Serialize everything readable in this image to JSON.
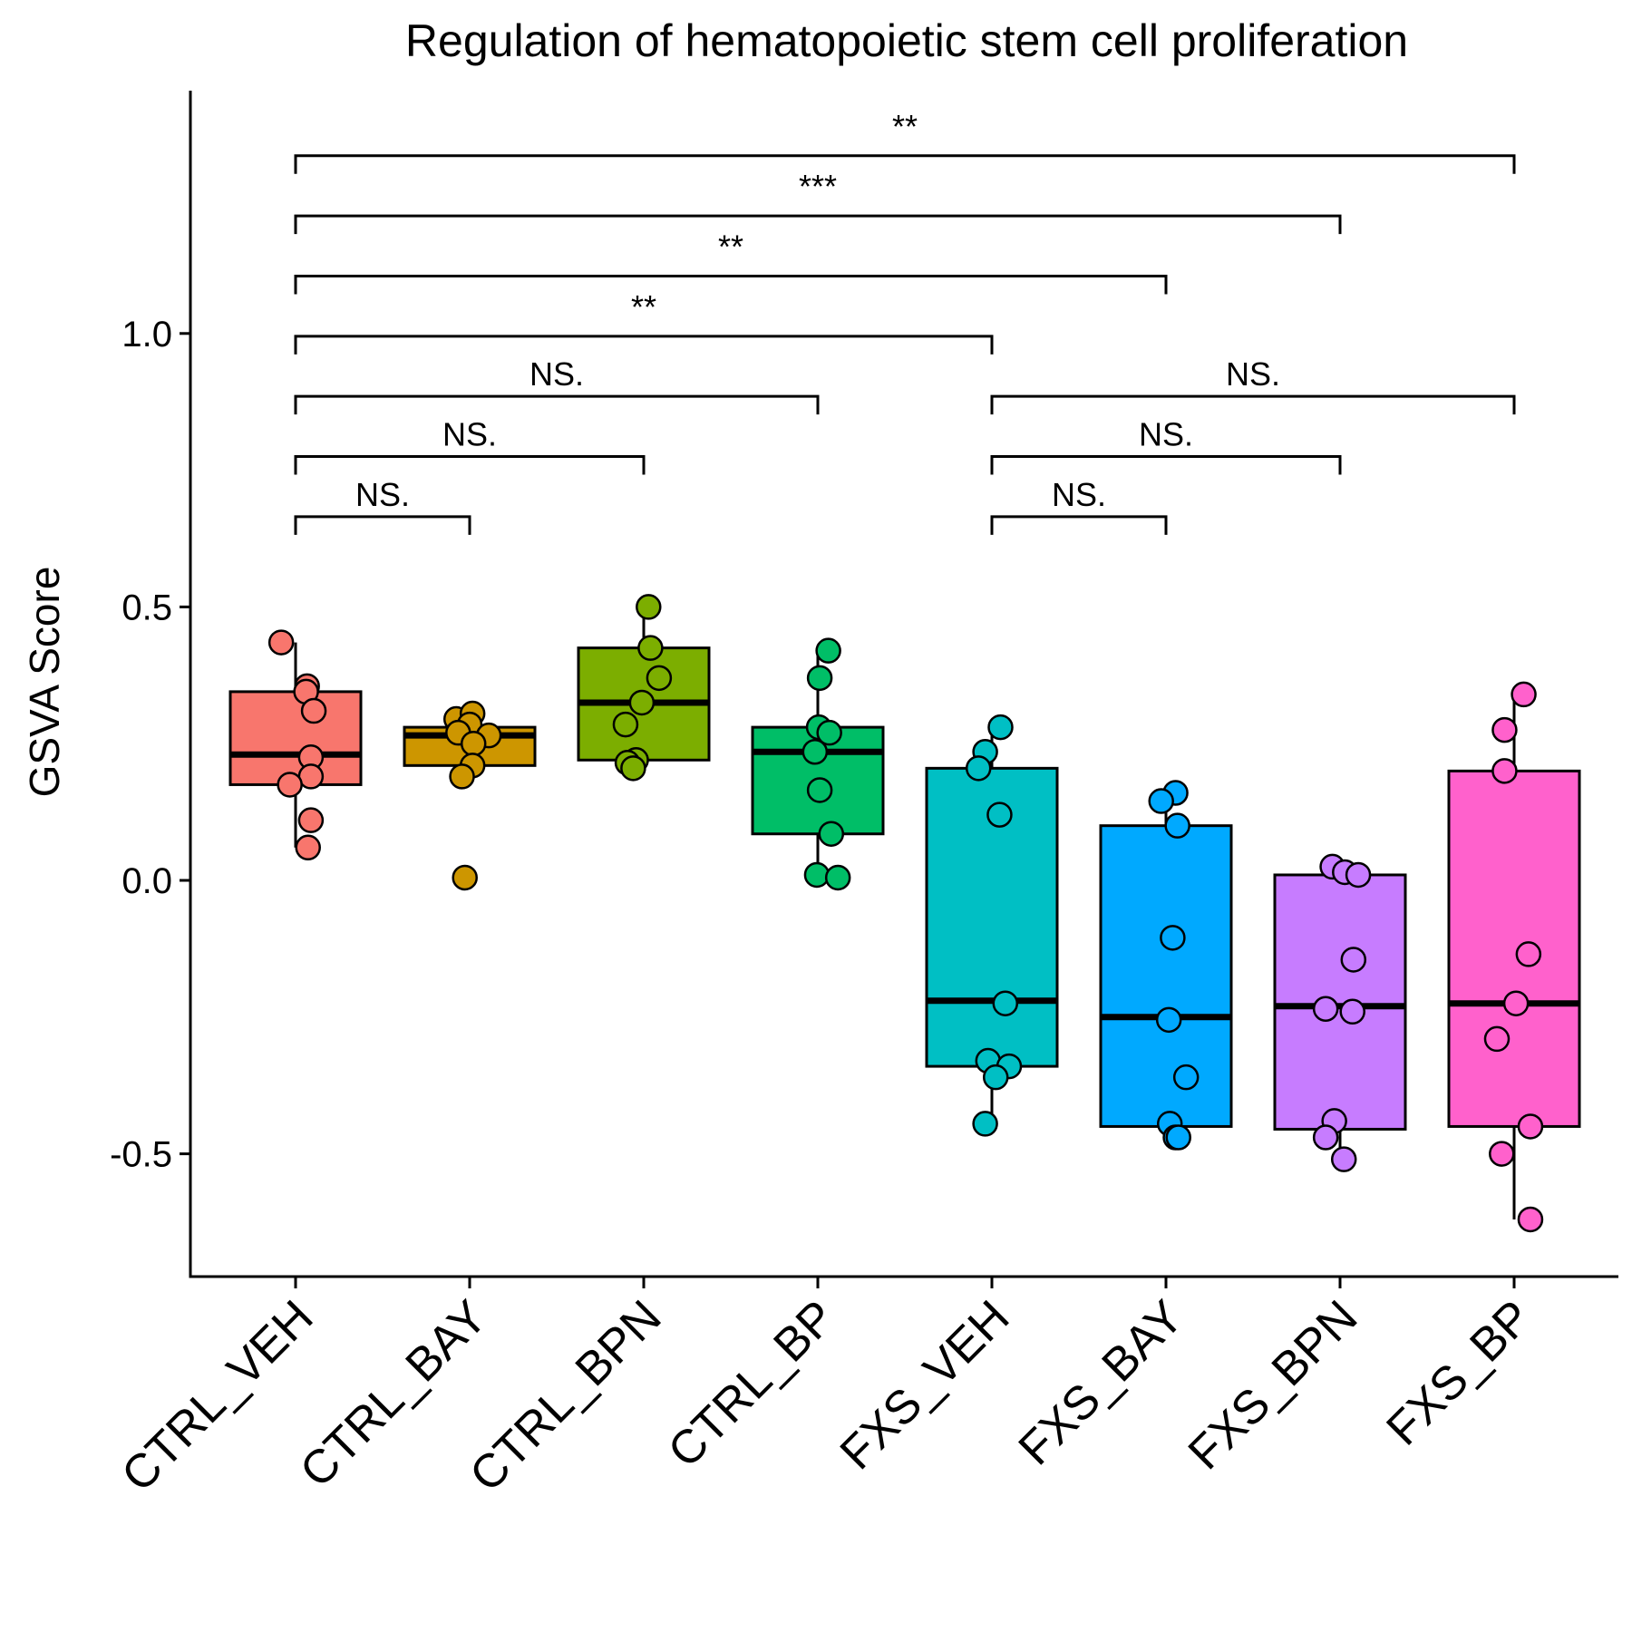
{
  "chart_data": {
    "type": "box",
    "title": "Regulation of hematopoietic stem cell proliferation",
    "xlabel": "",
    "ylabel": "GSVA Score",
    "ylim": [
      -0.72,
      1.46
    ],
    "yticks": [
      {
        "value": -0.5,
        "label": "-0.5"
      },
      {
        "value": 0.0,
        "label": "0.0"
      },
      {
        "value": 0.5,
        "label": "0.5"
      },
      {
        "value": 1.0,
        "label": "1.0"
      }
    ],
    "grid": false,
    "legend": "none",
    "categories": [
      "CTRL_VEH",
      "CTRL_BAY",
      "CTRL_BPN",
      "CTRL_BP",
      "FXS_VEH",
      "FXS_BAY",
      "FXS_BPN",
      "FXS_BP"
    ],
    "colors": [
      "#F8766D",
      "#CD9600",
      "#7CAE00",
      "#00BE67",
      "#00BFC4",
      "#00A9FF",
      "#C77CFF",
      "#FF61CC"
    ],
    "boxes": [
      {
        "q1": 0.175,
        "median": 0.23,
        "q3": 0.345,
        "whisker_low": 0.06,
        "whisker_high": 0.435
      },
      {
        "q1": 0.21,
        "median": 0.265,
        "q3": 0.28,
        "whisker_low": 0.21,
        "whisker_high": 0.31
      },
      {
        "q1": 0.22,
        "median": 0.325,
        "q3": 0.425,
        "whisker_low": 0.21,
        "whisker_high": 0.5
      },
      {
        "q1": 0.085,
        "median": 0.235,
        "q3": 0.28,
        "whisker_low": 0.01,
        "whisker_high": 0.42
      },
      {
        "q1": -0.34,
        "median": -0.22,
        "q3": 0.205,
        "whisker_low": -0.445,
        "whisker_high": 0.28
      },
      {
        "q1": -0.45,
        "median": -0.25,
        "q3": 0.1,
        "whisker_low": -0.47,
        "whisker_high": 0.16
      },
      {
        "q1": -0.455,
        "median": -0.23,
        "q3": 0.01,
        "whisker_low": -0.51,
        "whisker_high": 0.02
      },
      {
        "q1": -0.45,
        "median": -0.225,
        "q3": 0.2,
        "whisker_low": -0.62,
        "whisker_high": 0.335
      }
    ],
    "points": [
      [
        {
          "dx": -0.15,
          "y": 0.435
        },
        {
          "dx": 0.12,
          "y": 0.355
        },
        {
          "dx": 0.11,
          "y": 0.345
        },
        {
          "dx": 0.19,
          "y": 0.31
        },
        {
          "dx": 0.16,
          "y": 0.225
        },
        {
          "dx": 0.16,
          "y": 0.19
        },
        {
          "dx": -0.06,
          "y": 0.175
        },
        {
          "dx": 0.16,
          "y": 0.11
        },
        {
          "dx": 0.13,
          "y": 0.06
        }
      ],
      [
        {
          "dx": -0.14,
          "y": 0.295
        },
        {
          "dx": 0.03,
          "y": 0.305
        },
        {
          "dx": 0.0,
          "y": 0.285
        },
        {
          "dx": -0.12,
          "y": 0.27
        },
        {
          "dx": 0.2,
          "y": 0.265
        },
        {
          "dx": 0.04,
          "y": 0.25
        },
        {
          "dx": 0.03,
          "y": 0.21
        },
        {
          "dx": -0.08,
          "y": 0.19
        },
        {
          "dx": -0.05,
          "y": 0.005
        }
      ],
      [
        {
          "dx": 0.05,
          "y": 0.5
        },
        {
          "dx": 0.07,
          "y": 0.425
        },
        {
          "dx": 0.16,
          "y": 0.37
        },
        {
          "dx": -0.02,
          "y": 0.325
        },
        {
          "dx": -0.19,
          "y": 0.285
        },
        {
          "dx": -0.08,
          "y": 0.22
        },
        {
          "dx": -0.17,
          "y": 0.215
        },
        {
          "dx": -0.11,
          "y": 0.205
        }
      ],
      [
        {
          "dx": 0.11,
          "y": 0.42
        },
        {
          "dx": 0.02,
          "y": 0.37
        },
        {
          "dx": 0.01,
          "y": 0.28
        },
        {
          "dx": 0.12,
          "y": 0.27
        },
        {
          "dx": -0.03,
          "y": 0.235
        },
        {
          "dx": 0.02,
          "y": 0.165
        },
        {
          "dx": 0.14,
          "y": 0.085
        },
        {
          "dx": -0.01,
          "y": 0.01
        },
        {
          "dx": 0.21,
          "y": 0.005
        }
      ],
      [
        {
          "dx": 0.09,
          "y": 0.28
        },
        {
          "dx": -0.07,
          "y": 0.235
        },
        {
          "dx": -0.14,
          "y": 0.205
        },
        {
          "dx": 0.08,
          "y": 0.12
        },
        {
          "dx": 0.14,
          "y": -0.225
        },
        {
          "dx": -0.04,
          "y": -0.33
        },
        {
          "dx": 0.18,
          "y": -0.34
        },
        {
          "dx": 0.04,
          "y": -0.36
        },
        {
          "dx": -0.07,
          "y": -0.445
        }
      ],
      [
        {
          "dx": 0.1,
          "y": 0.16
        },
        {
          "dx": -0.05,
          "y": 0.145
        },
        {
          "dx": 0.12,
          "y": 0.1
        },
        {
          "dx": 0.07,
          "y": -0.105
        },
        {
          "dx": 0.03,
          "y": -0.255
        },
        {
          "dx": 0.21,
          "y": -0.36
        },
        {
          "dx": 0.04,
          "y": -0.445
        },
        {
          "dx": 0.1,
          "y": -0.47
        },
        {
          "dx": 0.13,
          "y": -0.47
        }
      ],
      [
        {
          "dx": -0.08,
          "y": 0.025
        },
        {
          "dx": 0.05,
          "y": 0.015
        },
        {
          "dx": 0.19,
          "y": 0.01
        },
        {
          "dx": 0.14,
          "y": -0.145
        },
        {
          "dx": -0.15,
          "y": -0.235
        },
        {
          "dx": 0.13,
          "y": -0.24
        },
        {
          "dx": -0.06,
          "y": -0.44
        },
        {
          "dx": -0.15,
          "y": -0.47
        },
        {
          "dx": 0.04,
          "y": -0.51
        }
      ],
      [
        {
          "dx": 0.1,
          "y": 0.34
        },
        {
          "dx": -0.1,
          "y": 0.275
        },
        {
          "dx": -0.1,
          "y": 0.2
        },
        {
          "dx": 0.15,
          "y": -0.135
        },
        {
          "dx": 0.02,
          "y": -0.225
        },
        {
          "dx": -0.18,
          "y": -0.29
        },
        {
          "dx": 0.17,
          "y": -0.45
        },
        {
          "dx": -0.13,
          "y": -0.5
        },
        {
          "dx": 0.17,
          "y": -0.62
        }
      ]
    ],
    "comparisons": [
      {
        "from": 0,
        "to": 1,
        "label": "NS.",
        "y": 0.665
      },
      {
        "from": 0,
        "to": 2,
        "label": "NS.",
        "y": 0.775
      },
      {
        "from": 0,
        "to": 3,
        "label": "NS.",
        "y": 0.885
      },
      {
        "from": 0,
        "to": 4,
        "label": "**",
        "y": 0.995
      },
      {
        "from": 0,
        "to": 5,
        "label": "**",
        "y": 1.105
      },
      {
        "from": 0,
        "to": 6,
        "label": "***",
        "y": 1.215
      },
      {
        "from": 0,
        "to": 7,
        "label": "**",
        "y": 1.325
      },
      {
        "from": 4,
        "to": 5,
        "label": "NS.",
        "y": 0.665
      },
      {
        "from": 4,
        "to": 6,
        "label": "NS.",
        "y": 0.775
      },
      {
        "from": 4,
        "to": 7,
        "label": "NS.",
        "y": 0.885
      }
    ]
  }
}
